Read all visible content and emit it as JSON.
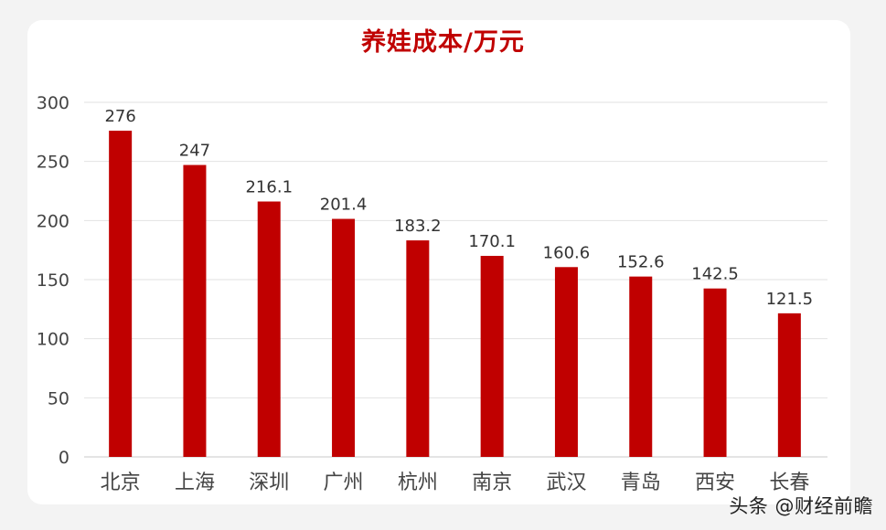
{
  "chart_data": {
    "type": "bar",
    "title": "养娃成本/万元",
    "categories": [
      "北京",
      "上海",
      "深圳",
      "广州",
      "杭州",
      "南京",
      "武汉",
      "青岛",
      "西安",
      "长春"
    ],
    "values": [
      276,
      247,
      216.1,
      201.4,
      183.2,
      170.1,
      160.6,
      152.6,
      142.5,
      121.5
    ],
    "value_labels": [
      "276",
      "247",
      "216.1",
      "201.4",
      "183.2",
      "170.1",
      "160.6",
      "152.6",
      "142.5",
      "121.5"
    ],
    "ylim": [
      0,
      300
    ],
    "yticks": [
      0,
      50,
      100,
      150,
      200,
      250,
      300
    ],
    "grid": true,
    "legend": "none",
    "bar_color": "#c00000"
  },
  "watermark": "头条 @财经前瞻"
}
